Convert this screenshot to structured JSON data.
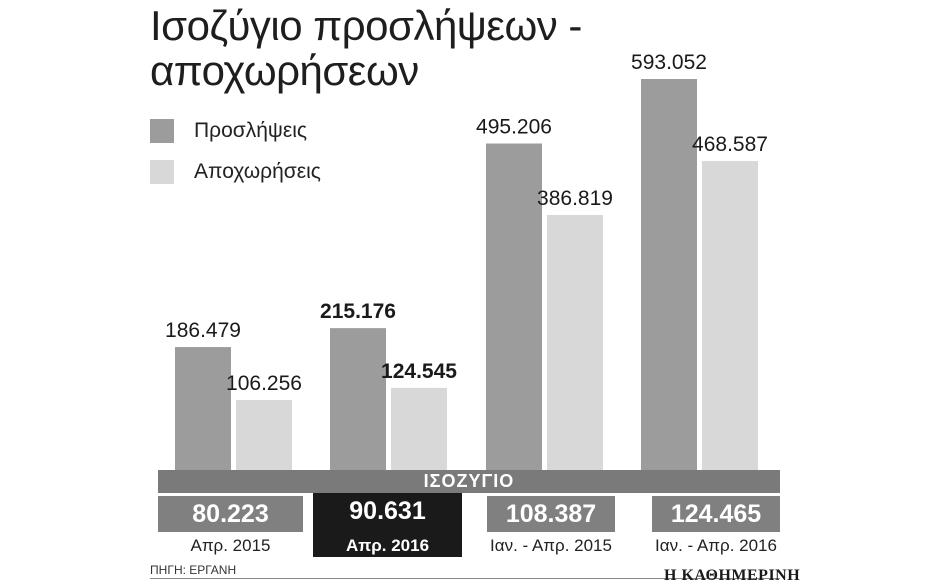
{
  "title_line1": "Ισοζύγιο προσλήψεων -",
  "title_line2": "αποχωρήσεων",
  "colors": {
    "hires": "#9c9c9c",
    "exits": "#d8d8d8",
    "balance": "#808080",
    "highlight": "#1a1a1a"
  },
  "balance_label": "ΙΣΟΖΥΓΙΟ",
  "source": "ΠΗΓΗ: ΕΡΓΑΝΗ",
  "brand": "Η ΚΑΘΗΜΕΡΙΝΗ",
  "periods": [
    {
      "label": "Απρ. 2015",
      "balance": "80.223",
      "highlight": false
    },
    {
      "label": "Απρ. 2016",
      "balance": "90.631",
      "highlight": true
    },
    {
      "label": "Ιαν. - Απρ. 2015",
      "balance": "108.387",
      "highlight": false
    },
    {
      "label": "Ιαν. - Απρ. 2016",
      "balance": "124.465",
      "highlight": false
    }
  ],
  "chart_data": {
    "type": "bar",
    "title": "Ισοζύγιο προσλήψεων - αποχωρήσεων",
    "categories": [
      "Απρ. 2015",
      "Απρ. 2016",
      "Ιαν. - Απρ. 2015",
      "Ιαν. - Απρ. 2016"
    ],
    "series": [
      {
        "name": "Προσλήψεις",
        "values": [
          186479,
          215176,
          495206,
          593052
        ],
        "labels": [
          "186.479",
          "215.176",
          "495.206",
          "593.052"
        ],
        "bold_labels": [
          false,
          true,
          false,
          false
        ]
      },
      {
        "name": "Αποχωρήσεις",
        "values": [
          106256,
          124545,
          386819,
          468587
        ],
        "labels": [
          "106.256",
          "124.545",
          "386.819",
          "468.587"
        ],
        "bold_labels": [
          false,
          true,
          false,
          false
        ]
      }
    ],
    "balance": [
      80223,
      90631,
      108387,
      124465
    ],
    "legend_position": "top-left",
    "grid": false,
    "ylim": [
      0,
      593052
    ]
  }
}
